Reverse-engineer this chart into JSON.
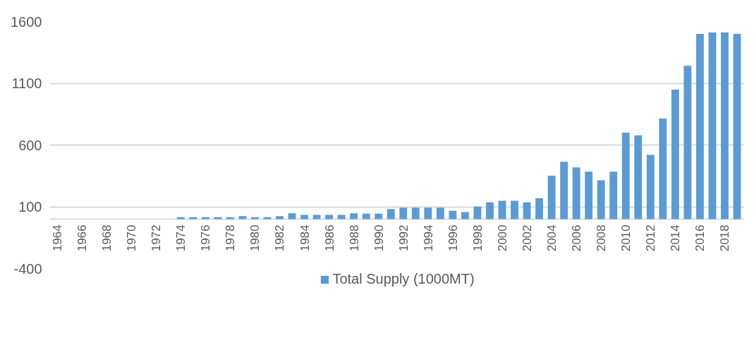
{
  "chart_data": {
    "type": "bar",
    "categories": [
      "1964",
      null,
      "1966",
      null,
      "1968",
      null,
      "1970",
      null,
      "1972",
      null,
      "1974",
      null,
      "1976",
      null,
      "1978",
      null,
      "1980",
      null,
      "1982",
      null,
      "1984",
      null,
      "1986",
      null,
      "1988",
      null,
      "1990",
      null,
      "1992",
      null,
      "1994",
      null,
      "1996",
      null,
      "1998",
      null,
      "2000",
      null,
      "2002",
      null,
      "2004",
      null,
      "2006",
      null,
      "2008",
      null,
      "2010",
      null,
      "2012",
      null,
      "2014",
      null,
      "2016",
      null,
      "2018",
      null
    ],
    "series": [
      {
        "name": "Total Supply (1000MT)",
        "color": "#5b9bd5",
        "values": [
          0,
          0,
          0,
          0,
          0,
          0,
          0,
          0,
          0,
          0,
          16,
          16,
          16,
          16,
          16,
          25,
          16,
          16,
          25,
          47,
          35,
          35,
          35,
          35,
          47,
          45,
          45,
          81,
          93,
          93,
          93,
          93,
          67,
          57,
          102,
          136,
          148,
          148,
          136,
          169,
          351,
          465,
          418,
          384,
          315,
          384,
          700,
          678,
          520,
          814,
          1048,
          1241,
          1500,
          1511,
          1511,
          1500
        ]
      }
    ],
    "ylim": [
      -400,
      1600
    ],
    "yticks": [
      -400,
      100,
      600,
      1100,
      1600
    ],
    "grid": "y",
    "legend": "bottom"
  }
}
